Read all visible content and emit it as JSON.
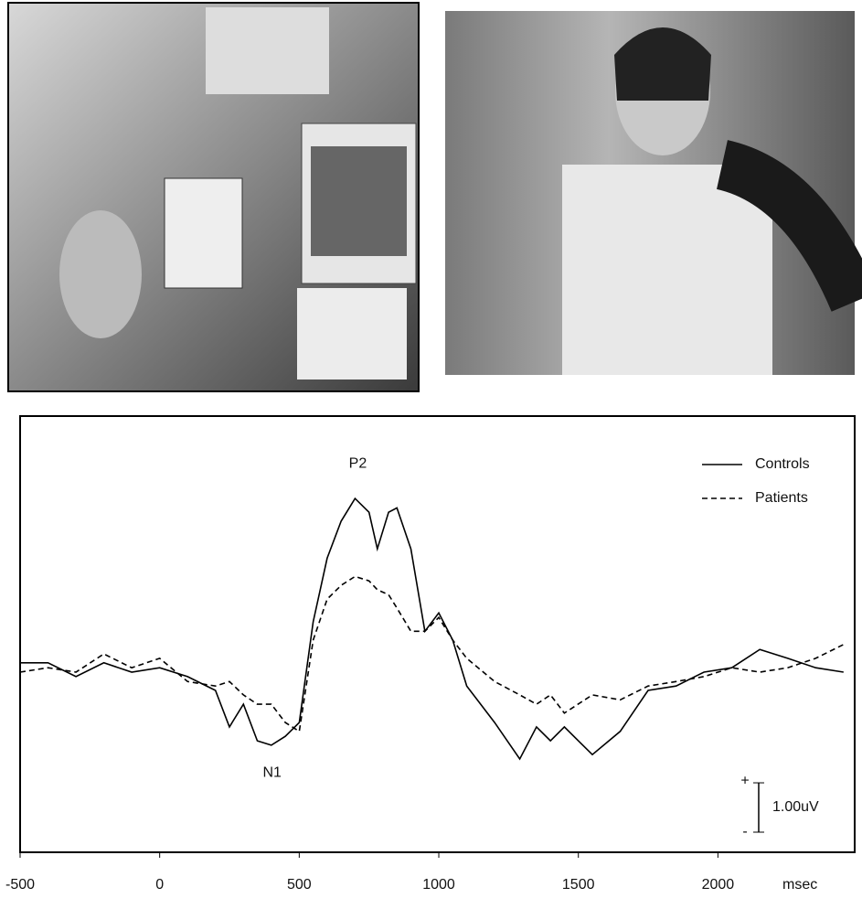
{
  "chart_data": {
    "type": "line",
    "annotations": [
      {
        "text": "P2",
        "x": 710,
        "y": 4.22
      },
      {
        "text": "N1",
        "x": 403,
        "y": -2.04
      }
    ],
    "x_label": "msec",
    "x": [
      -500,
      -400,
      -300,
      -200,
      -100,
      0,
      100,
      200,
      250,
      300,
      350,
      400,
      450,
      500,
      550,
      600,
      650,
      700,
      750,
      780,
      820,
      850,
      900,
      950,
      1000,
      1050,
      1100,
      1200,
      1290,
      1350,
      1400,
      1450,
      1550,
      1650,
      1750,
      1850,
      1950,
      2050,
      2150,
      2250,
      2350,
      2450
    ],
    "series": [
      {
        "name": "Controls",
        "color": "#000000",
        "dash": "solid",
        "values": [
          0.19,
          0.19,
          -0.09,
          0.19,
          0,
          0.09,
          -0.09,
          -0.37,
          -1.11,
          -0.65,
          -1.39,
          -1.48,
          -1.3,
          -1.02,
          1.02,
          2.31,
          3.06,
          3.52,
          3.24,
          2.5,
          3.24,
          3.33,
          2.5,
          0.83,
          1.2,
          0.65,
          -0.28,
          -1.02,
          -1.76,
          -1.11,
          -1.39,
          -1.11,
          -1.67,
          -1.2,
          -0.37,
          -0.28,
          0,
          0.09,
          0.46,
          0.28,
          0.09,
          0
        ]
      },
      {
        "name": "Patients",
        "color": "#000000",
        "dash": "dashed",
        "values": [
          0,
          0.09,
          0,
          0.37,
          0.09,
          0.28,
          -0.19,
          -0.28,
          -0.19,
          -0.46,
          -0.65,
          -0.65,
          -1.02,
          -1.2,
          0.65,
          1.48,
          1.76,
          1.94,
          1.85,
          1.67,
          1.57,
          1.3,
          0.83,
          0.83,
          1.11,
          0.65,
          0.28,
          -0.19,
          -0.46,
          -0.65,
          -0.46,
          -0.83,
          -0.46,
          -0.56,
          -0.28,
          -0.19,
          -0.09,
          0.09,
          0,
          0.09,
          0.28,
          0.56
        ]
      }
    ],
    "xlim": [
      -500,
      2490
    ],
    "ylim": [
      -3.65,
      5.19
    ],
    "xticks": [
      -500,
      0,
      500,
      1000,
      1500,
      2000
    ],
    "legend": "top-right",
    "scale_bar": {
      "value": 1,
      "label": "1.00uV",
      "plus": "+",
      "minus": "-"
    }
  }
}
